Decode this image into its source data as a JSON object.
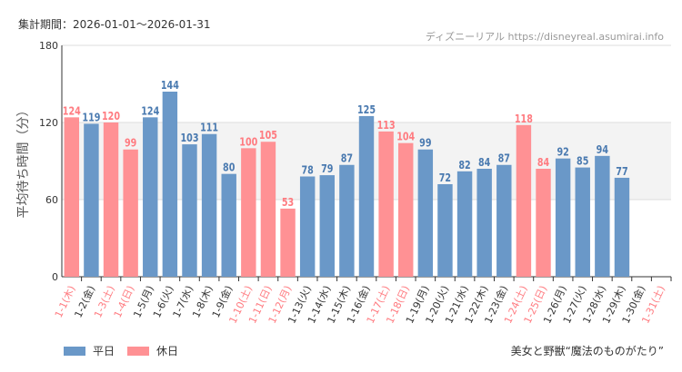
{
  "header": {
    "period": "集計期間：2026-01-01～2026-01-31",
    "source": "ディズニーリアル https://disneyreal.asumirai.info"
  },
  "footer": {
    "attraction": "美女と野獣“魔法のものがたり”"
  },
  "colors": {
    "weekday": "#6a98c8",
    "holiday": "#ff9194",
    "weekday_text": "#4a7ab0",
    "holiday_text": "#ff7b80",
    "band": "#f3f3f3"
  },
  "chart_data": {
    "type": "bar",
    "ylabel": "平均待ち時間（分）",
    "ylim": [
      0,
      180
    ],
    "yticks": [
      0,
      60,
      120,
      180
    ],
    "legend": [
      {
        "name": "平日",
        "color": "#6a98c8"
      },
      {
        "name": "休日",
        "color": "#ff9194"
      }
    ],
    "legend_position": "bottom-left",
    "categories": [
      "1-1(木)",
      "1-2(金)",
      "1-3(土)",
      "1-4(日)",
      "1-5(月)",
      "1-6(火)",
      "1-7(水)",
      "1-8(木)",
      "1-9(金)",
      "1-10(土)",
      "1-11(日)",
      "1-12(月)",
      "1-13(火)",
      "1-14(水)",
      "1-15(木)",
      "1-16(金)",
      "1-17(土)",
      "1-18(日)",
      "1-19(月)",
      "1-20(火)",
      "1-21(水)",
      "1-22(木)",
      "1-23(金)",
      "1-24(土)",
      "1-25(日)",
      "1-26(月)",
      "1-27(火)",
      "1-28(水)",
      "1-29(木)",
      "1-30(金)",
      "1-31(土)"
    ],
    "holiday": [
      true,
      false,
      true,
      true,
      false,
      false,
      false,
      false,
      false,
      true,
      true,
      true,
      false,
      false,
      false,
      false,
      true,
      true,
      false,
      false,
      false,
      false,
      false,
      true,
      true,
      false,
      false,
      false,
      false,
      false,
      true
    ],
    "values": [
      124,
      119,
      120,
      99,
      124,
      144,
      103,
      111,
      80,
      100,
      105,
      53,
      78,
      79,
      87,
      125,
      113,
      104,
      99,
      72,
      82,
      84,
      87,
      118,
      84,
      92,
      85,
      94,
      77,
      null,
      null
    ]
  }
}
